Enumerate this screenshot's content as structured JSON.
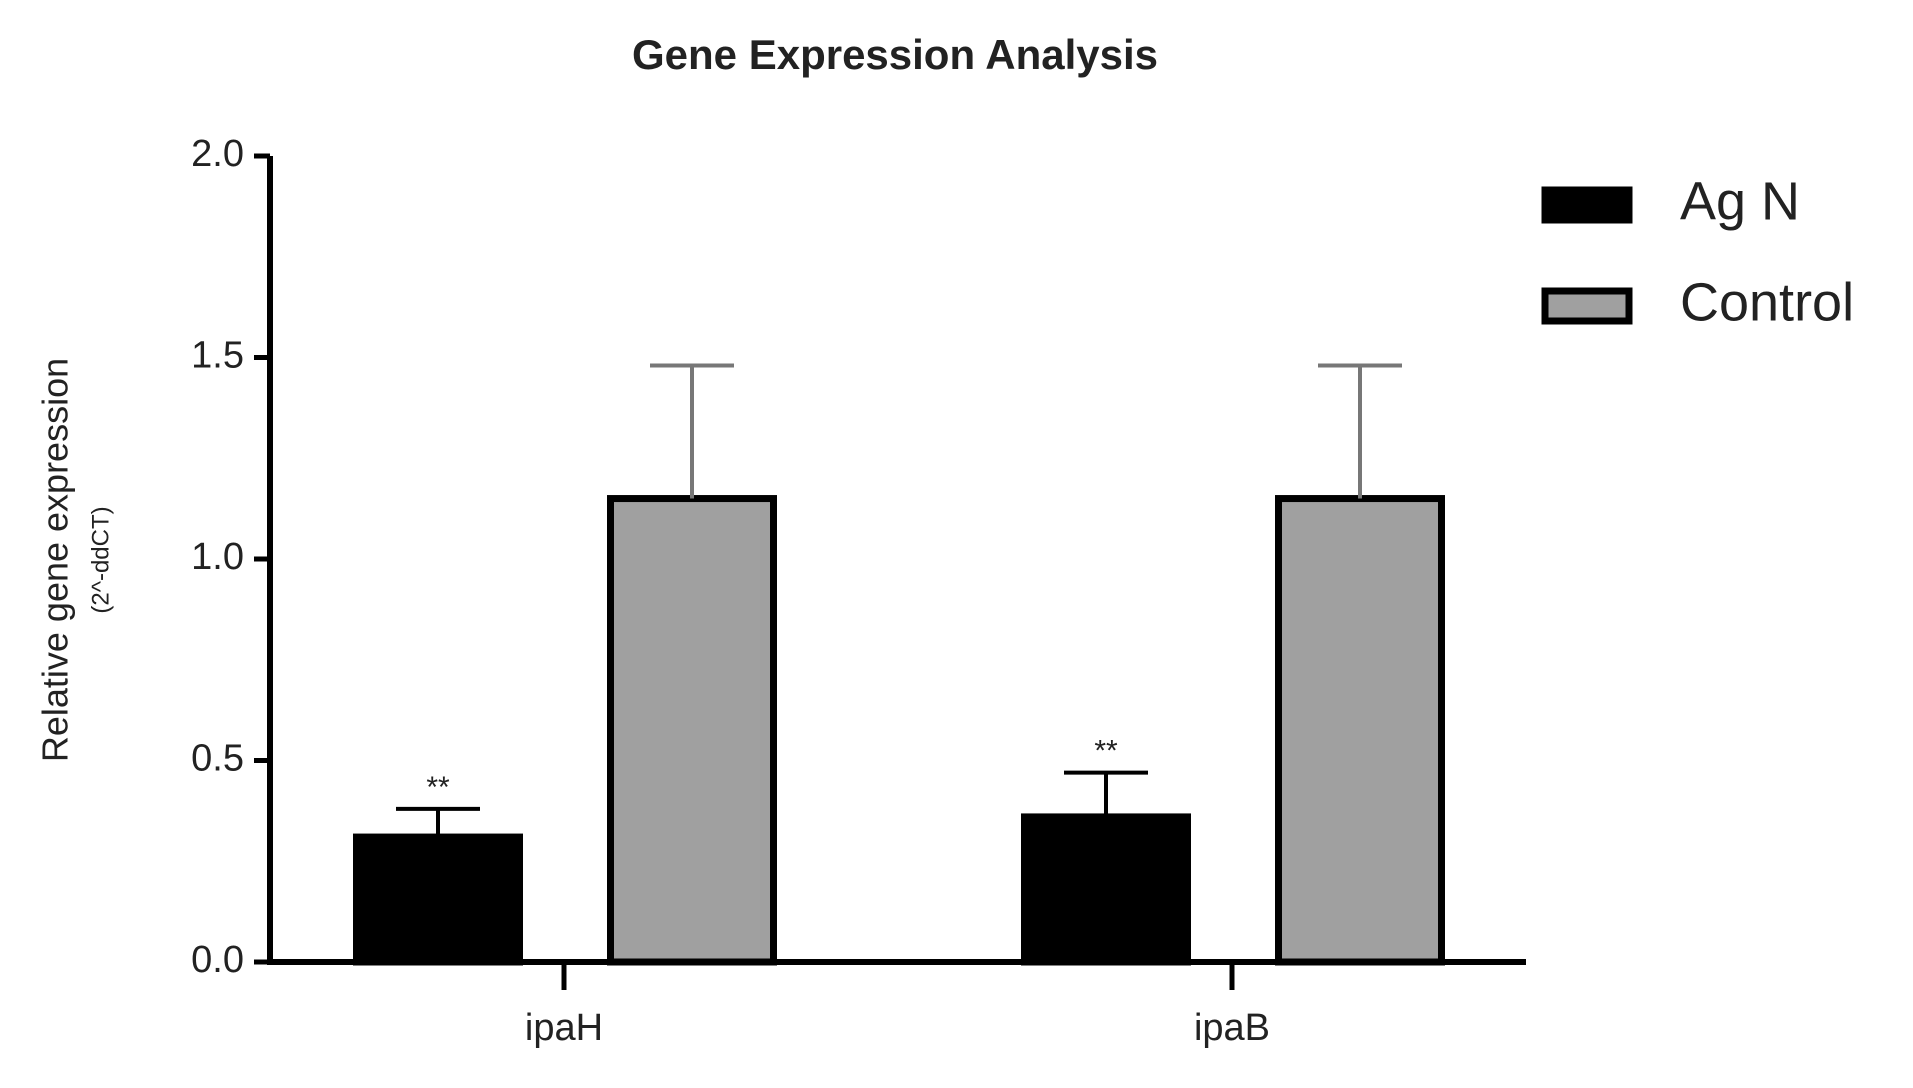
{
  "chart_data": {
    "type": "bar",
    "title": "Gene Expression Analysis",
    "ylabel": "Relative gene expression",
    "ylabel_unit": "(2^-ddCT)",
    "categories": [
      "ipaH",
      "ipaB"
    ],
    "series": [
      {
        "name": "Ag N",
        "color": "#000000",
        "values": [
          0.31,
          0.36
        ],
        "errors": [
          0.07,
          0.11
        ],
        "annotations": [
          "**",
          "**"
        ]
      },
      {
        "name": "Control",
        "color": "#a0a0a0",
        "values": [
          1.15,
          1.15
        ],
        "errors": [
          0.33,
          0.33
        ]
      }
    ],
    "ylim": [
      0,
      2.0
    ],
    "yticks": [
      {
        "value": 0,
        "label": "0.0"
      },
      {
        "value": 0.5,
        "label": "0.5"
      },
      {
        "value": 1,
        "label": "1.0"
      },
      {
        "value": 1.5,
        "label": "1.5"
      },
      {
        "value": 2,
        "label": "2.0"
      }
    ],
    "grid": false,
    "legend": "top-right"
  }
}
